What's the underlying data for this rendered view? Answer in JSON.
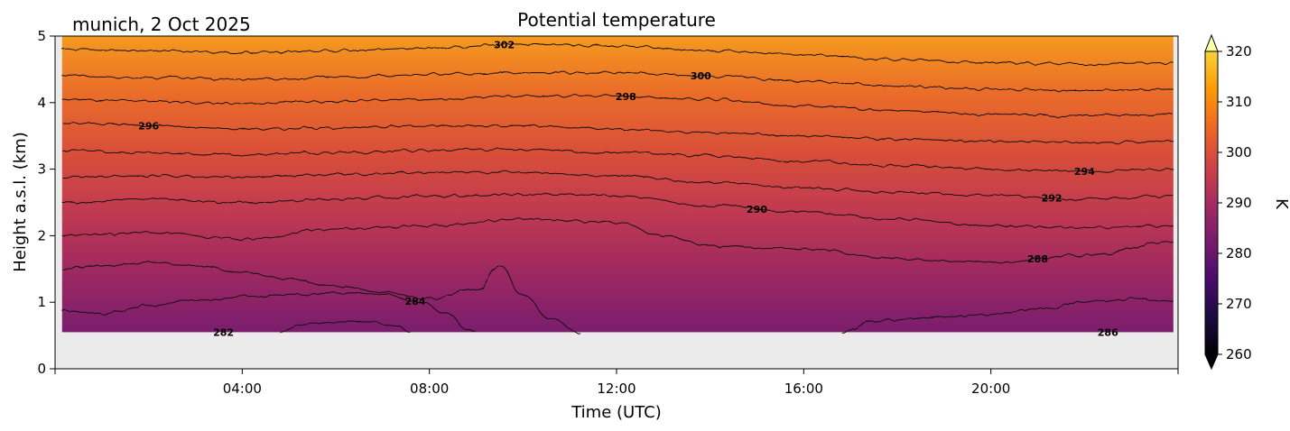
{
  "chart_data": {
    "type": "heatmap",
    "title": "Potential temperature",
    "subtitle": "munich, 2 Oct 2025",
    "xlabel": "Time (UTC)",
    "ylabel": "Height a.s.l. (km)",
    "xlim_hours": [
      0,
      24
    ],
    "ylim_km": [
      0,
      5
    ],
    "x_ticks": [
      {
        "value": 4,
        "label": "04:00"
      },
      {
        "value": 8,
        "label": "08:00"
      },
      {
        "value": 12,
        "label": "12:00"
      },
      {
        "value": 16,
        "label": "16:00"
      },
      {
        "value": 20,
        "label": "20:00"
      }
    ],
    "y_ticks": [
      {
        "value": 0,
        "label": "0"
      },
      {
        "value": 1,
        "label": "1"
      },
      {
        "value": 2,
        "label": "2"
      },
      {
        "value": 3,
        "label": "3"
      },
      {
        "value": 4,
        "label": "4"
      },
      {
        "value": 5,
        "label": "5"
      }
    ],
    "data_extent": {
      "t_start_hours": 0.15,
      "t_end_hours": 23.9,
      "z_min_km": 0.55,
      "z_max_km": 5.0
    },
    "colorbar": {
      "label": "K",
      "range": [
        260,
        320
      ],
      "ticks": [
        {
          "value": 260,
          "label": "260"
        },
        {
          "value": 270,
          "label": "270"
        },
        {
          "value": 280,
          "label": "280"
        },
        {
          "value": 290,
          "label": "290"
        },
        {
          "value": 300,
          "label": "300"
        },
        {
          "value": 310,
          "label": "310"
        },
        {
          "value": 320,
          "label": "320"
        }
      ],
      "extend": "both",
      "colormap": "inferno"
    },
    "contours": [
      {
        "level": 282,
        "label": "282",
        "label_at_hour": 3.6,
        "points": [
          [
            4.8,
            0.55
          ],
          [
            5.5,
            0.68
          ],
          [
            6.5,
            0.72
          ],
          [
            7.3,
            0.65
          ],
          [
            7.6,
            0.55
          ]
        ]
      },
      {
        "level": 284,
        "label": "284",
        "label_at_hour": 7.7,
        "points": [
          [
            0.15,
            0.87
          ],
          [
            1.0,
            0.83
          ],
          [
            2.0,
            0.95
          ],
          [
            3.0,
            1.03
          ],
          [
            4.0,
            1.08
          ],
          [
            5.0,
            1.12
          ],
          [
            6.0,
            1.15
          ],
          [
            7.0,
            1.12
          ],
          [
            7.8,
            1.0
          ],
          [
            8.4,
            0.82
          ],
          [
            8.8,
            0.6
          ],
          [
            9.0,
            0.55
          ]
        ]
      },
      {
        "level": 286,
        "label": "286",
        "label_at_hour": 22.5,
        "points": [
          [
            0.15,
            1.5
          ],
          [
            1.0,
            1.55
          ],
          [
            2.0,
            1.6
          ],
          [
            3.0,
            1.55
          ],
          [
            4.0,
            1.45
          ],
          [
            5.0,
            1.35
          ],
          [
            6.0,
            1.25
          ],
          [
            7.0,
            1.15
          ],
          [
            8.0,
            1.05
          ],
          [
            9.0,
            1.2
          ],
          [
            9.5,
            1.55
          ],
          [
            10.0,
            1.1
          ],
          [
            10.6,
            0.75
          ],
          [
            11.2,
            0.55
          ]
        ]
      },
      {
        "level": 286,
        "label": "",
        "label_at_hour": null,
        "points": [
          [
            16.8,
            0.55
          ],
          [
            17.5,
            0.72
          ],
          [
            19.0,
            0.78
          ],
          [
            20.0,
            0.82
          ],
          [
            21.0,
            0.9
          ],
          [
            22.0,
            1.0
          ],
          [
            23.0,
            1.05
          ],
          [
            23.9,
            1.02
          ]
        ]
      },
      {
        "level": 288,
        "label": "288",
        "label_at_hour": 21.0,
        "points": [
          [
            0.15,
            2.0
          ],
          [
            2.0,
            2.05
          ],
          [
            4.0,
            1.95
          ],
          [
            6.0,
            2.1
          ],
          [
            8.0,
            2.15
          ],
          [
            10.0,
            2.25
          ],
          [
            12.0,
            2.2
          ],
          [
            13.0,
            2.0
          ],
          [
            14.0,
            1.85
          ],
          [
            16.0,
            1.8
          ],
          [
            18.0,
            1.65
          ],
          [
            20.0,
            1.6
          ],
          [
            22.0,
            1.7
          ],
          [
            23.9,
            1.9
          ]
        ]
      },
      {
        "level": 290,
        "label": "290",
        "label_at_hour": 15.0,
        "points": [
          [
            0.15,
            2.5
          ],
          [
            2.0,
            2.55
          ],
          [
            4.0,
            2.5
          ],
          [
            6.0,
            2.55
          ],
          [
            8.0,
            2.6
          ],
          [
            10.0,
            2.62
          ],
          [
            12.0,
            2.6
          ],
          [
            14.0,
            2.45
          ],
          [
            16.0,
            2.35
          ],
          [
            18.0,
            2.25
          ],
          [
            20.0,
            2.15
          ],
          [
            22.0,
            2.12
          ],
          [
            23.9,
            2.15
          ]
        ]
      },
      {
        "level": 292,
        "label": "292",
        "label_at_hour": 21.3,
        "points": [
          [
            0.15,
            2.88
          ],
          [
            2.0,
            2.9
          ],
          [
            4.0,
            2.88
          ],
          [
            6.0,
            2.92
          ],
          [
            8.0,
            2.95
          ],
          [
            10.0,
            2.95
          ],
          [
            12.0,
            2.9
          ],
          [
            14.0,
            2.8
          ],
          [
            16.0,
            2.72
          ],
          [
            18.0,
            2.65
          ],
          [
            20.0,
            2.6
          ],
          [
            22.0,
            2.55
          ],
          [
            23.9,
            2.6
          ]
        ]
      },
      {
        "level": 294,
        "label": "294",
        "label_at_hour": 22.0,
        "points": [
          [
            0.15,
            3.28
          ],
          [
            2.0,
            3.25
          ],
          [
            4.0,
            3.22
          ],
          [
            6.0,
            3.25
          ],
          [
            8.0,
            3.28
          ],
          [
            10.0,
            3.3
          ],
          [
            12.0,
            3.25
          ],
          [
            14.0,
            3.2
          ],
          [
            16.0,
            3.12
          ],
          [
            18.0,
            3.05
          ],
          [
            20.0,
            3.0
          ],
          [
            22.0,
            2.97
          ],
          [
            23.9,
            3.0
          ]
        ]
      },
      {
        "level": 296,
        "label": "296",
        "label_at_hour": 2.0,
        "points": [
          [
            0.15,
            3.7
          ],
          [
            2.0,
            3.65
          ],
          [
            4.0,
            3.6
          ],
          [
            6.0,
            3.62
          ],
          [
            8.0,
            3.65
          ],
          [
            10.0,
            3.65
          ],
          [
            12.0,
            3.6
          ],
          [
            14.0,
            3.55
          ],
          [
            16.0,
            3.5
          ],
          [
            18.0,
            3.45
          ],
          [
            20.0,
            3.42
          ],
          [
            22.0,
            3.4
          ],
          [
            23.9,
            3.42
          ]
        ]
      },
      {
        "level": 298,
        "label": "298",
        "label_at_hour": 12.2,
        "points": [
          [
            0.15,
            4.05
          ],
          [
            2.0,
            4.02
          ],
          [
            4.0,
            3.98
          ],
          [
            6.0,
            4.02
          ],
          [
            8.0,
            4.05
          ],
          [
            10.0,
            4.1
          ],
          [
            12.0,
            4.1
          ],
          [
            14.0,
            4.05
          ],
          [
            16.0,
            3.95
          ],
          [
            18.0,
            3.88
          ],
          [
            20.0,
            3.82
          ],
          [
            22.0,
            3.8
          ],
          [
            23.9,
            3.82
          ]
        ]
      },
      {
        "level": 300,
        "label": "300",
        "label_at_hour": 13.8,
        "points": [
          [
            0.15,
            4.4
          ],
          [
            2.0,
            4.38
          ],
          [
            4.0,
            4.35
          ],
          [
            6.0,
            4.38
          ],
          [
            8.0,
            4.42
          ],
          [
            10.0,
            4.45
          ],
          [
            12.0,
            4.45
          ],
          [
            14.0,
            4.4
          ],
          [
            16.0,
            4.32
          ],
          [
            18.0,
            4.25
          ],
          [
            20.0,
            4.2
          ],
          [
            22.0,
            4.18
          ],
          [
            23.9,
            4.2
          ]
        ]
      },
      {
        "level": 302,
        "label": "302",
        "label_at_hour": 9.6,
        "points": [
          [
            0.15,
            4.8
          ],
          [
            2.0,
            4.78
          ],
          [
            4.0,
            4.75
          ],
          [
            6.0,
            4.78
          ],
          [
            8.0,
            4.82
          ],
          [
            10.0,
            4.88
          ],
          [
            12.0,
            4.85
          ],
          [
            14.0,
            4.78
          ],
          [
            16.0,
            4.72
          ],
          [
            18.0,
            4.65
          ],
          [
            20.0,
            4.6
          ],
          [
            22.0,
            4.58
          ],
          [
            23.9,
            4.6
          ]
        ]
      }
    ]
  },
  "colors": {
    "axes_background": "#ebebeb",
    "contour_line": "#111111"
  }
}
